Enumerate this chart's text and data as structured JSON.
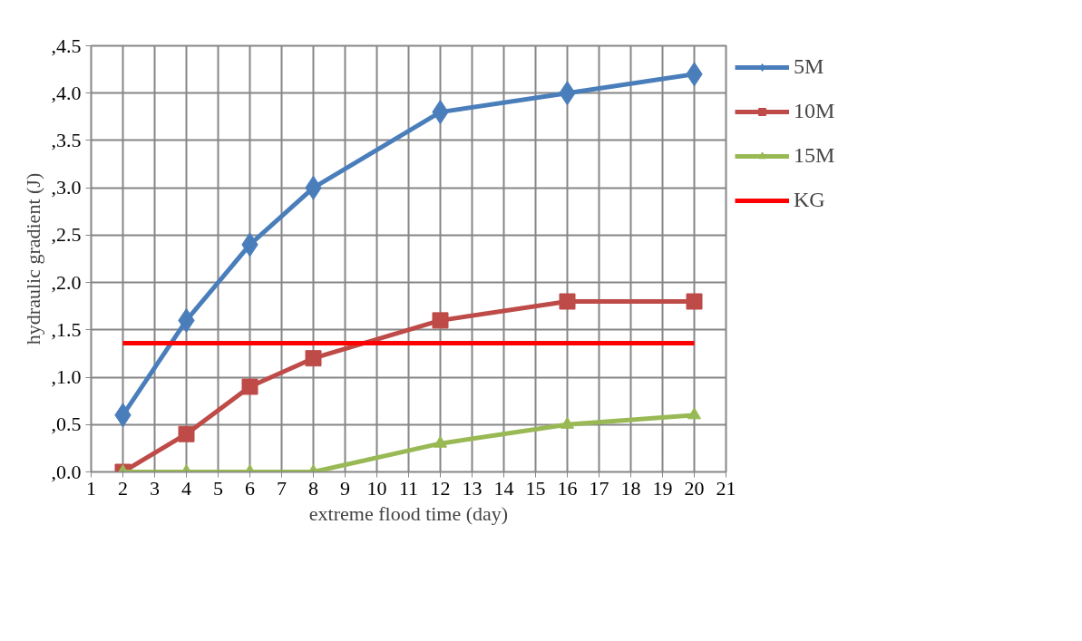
{
  "chart_data": {
    "type": "line",
    "xlabel": "extreme flood time (day)",
    "ylabel": "hydraulic gradient (J)",
    "x": [
      2,
      4,
      6,
      8,
      12,
      16,
      20
    ],
    "series": [
      {
        "name": "5M",
        "color": "#4a7ebb",
        "marker": "diamond",
        "values": [
          0.6,
          1.6,
          2.4,
          3.0,
          3.8,
          4.0,
          4.2
        ]
      },
      {
        "name": "10M",
        "color": "#be4b48",
        "marker": "square",
        "values": [
          0.0,
          0.4,
          0.9,
          1.2,
          1.6,
          1.8,
          1.8
        ]
      },
      {
        "name": "15M",
        "color": "#98b954",
        "marker": "triangle",
        "values": [
          0.0,
          0.0,
          0.0,
          0.0,
          0.3,
          0.5,
          0.6
        ]
      },
      {
        "name": "KG",
        "color": "#ff0000",
        "marker": "none",
        "x": [
          2,
          20
        ],
        "values": [
          1.36,
          1.36
        ]
      }
    ],
    "xlim": [
      1,
      21
    ],
    "xticks": [
      1,
      2,
      3,
      4,
      5,
      6,
      7,
      8,
      9,
      10,
      11,
      12,
      13,
      14,
      15,
      16,
      17,
      18,
      19,
      20,
      21
    ],
    "ylim": [
      0,
      4.5
    ],
    "yticks": [
      {
        "value": 0,
        "label": ",0.0"
      },
      {
        "value": 0.5,
        "label": ",0.5"
      },
      {
        "value": 1.0,
        "label": ",1.0"
      },
      {
        "value": 1.5,
        "label": ",1.5"
      },
      {
        "value": 2.0,
        "label": ",2.0"
      },
      {
        "value": 2.5,
        "label": ",2.5"
      },
      {
        "value": 3.0,
        "label": ",3.0"
      },
      {
        "value": 3.5,
        "label": ",3.5"
      },
      {
        "value": 4.0,
        "label": ",4.0"
      },
      {
        "value": 4.5,
        "label": ",4.5"
      }
    ],
    "grid": true,
    "legend": "right",
    "line_style": "solid"
  }
}
